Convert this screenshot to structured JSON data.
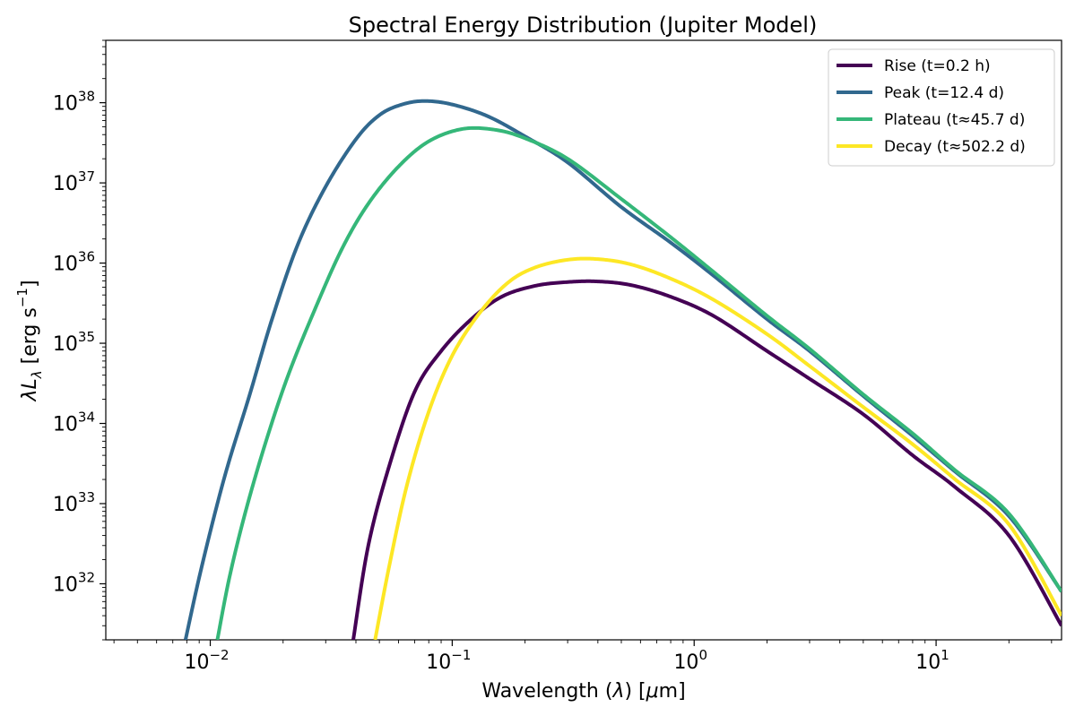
{
  "chart_data": {
    "type": "line",
    "title": "Spectral Energy Distribution (Jupiter Model)",
    "xlabel": "Wavelength (λ) [μm]",
    "ylabel": "λL_λ [erg s⁻¹]",
    "xscale": "log",
    "yscale": "log",
    "xlim": [
      0.0037,
      33
    ],
    "ylim": [
      2e+31,
      6e+38
    ],
    "grid": false,
    "legend_position": "top-right",
    "x_ticks": [
      {
        "base": "10",
        "exp": "−2",
        "value": 0.01
      },
      {
        "base": "10",
        "exp": "−1",
        "value": 0.1
      },
      {
        "base": "10",
        "exp": "0",
        "value": 1
      },
      {
        "base": "10",
        "exp": "1",
        "value": 10
      }
    ],
    "y_ticks": [
      {
        "base": "10",
        "exp": "32",
        "value": 1e+32
      },
      {
        "base": "10",
        "exp": "33",
        "value": 1e+33
      },
      {
        "base": "10",
        "exp": "34",
        "value": 1e+34
      },
      {
        "base": "10",
        "exp": "35",
        "value": 1e+35
      },
      {
        "base": "10",
        "exp": "36",
        "value": 1e+36
      },
      {
        "base": "10",
        "exp": "37",
        "value": 1e+37
      },
      {
        "base": "10",
        "exp": "38",
        "value": 1e+38
      }
    ],
    "series": [
      {
        "name": "Rise (t=0.2 h)",
        "color": "#440154",
        "x": [
          0.039,
          0.045,
          0.055,
          0.07,
          0.09,
          0.12,
          0.16,
          0.22,
          0.3,
          0.4,
          0.55,
          0.8,
          1.2,
          2,
          3,
          5,
          8,
          12,
          20,
          33
        ],
        "y": [
          2e+31,
          3e+32,
          3e+33,
          2.5e+34,
          8e+34,
          2e+35,
          3.8e+35,
          5.2e+35,
          5.8e+35,
          5.9e+35,
          5.3e+35,
          3.8e+35,
          2.2e+35,
          8e+34,
          3.6e+34,
          1.3e+34,
          4e+33,
          1.6e+33,
          4e+32,
          3e+31
        ]
      },
      {
        "name": "Peak (t=12.4 d)",
        "color": "#31688e",
        "x": [
          0.0079,
          0.009,
          0.0105,
          0.012,
          0.0145,
          0.018,
          0.023,
          0.03,
          0.04,
          0.05,
          0.062,
          0.077,
          0.1,
          0.14,
          0.2,
          0.3,
          0.5,
          0.8,
          1.2,
          2,
          3,
          5,
          8,
          12,
          20,
          33
        ],
        "y": [
          2e+31,
          1.2e+32,
          8e+32,
          3.5e+33,
          2.2e+34,
          2e+35,
          1.7e+36,
          9e+36,
          3.5e+37,
          7e+37,
          9.5e+37,
          1.05e+38,
          9.5e+37,
          6.8e+37,
          3.8e+37,
          1.8e+37,
          5e+36,
          1.8e+36,
          7e+35,
          2e+35,
          8e+34,
          2.2e+34,
          7e+33,
          2.5e+33,
          7e+32,
          8e+31
        ]
      },
      {
        "name": "Plateau (t≈45.7 d)",
        "color": "#35b779",
        "x": [
          0.0107,
          0.012,
          0.014,
          0.017,
          0.021,
          0.027,
          0.035,
          0.045,
          0.06,
          0.08,
          0.11,
          0.15,
          0.2,
          0.3,
          0.5,
          0.8,
          1.2,
          2,
          3,
          5,
          8,
          12,
          20,
          33
        ],
        "y": [
          2e+31,
          1.2e+32,
          8e+32,
          6e+33,
          4e+34,
          2.6e+35,
          1.5e+36,
          5.5e+36,
          1.6e+37,
          3.3e+37,
          4.7e+37,
          4.6e+37,
          3.6e+37,
          2e+37,
          6.3e+36,
          2.1e+36,
          7.8e+35,
          2.2e+35,
          8.5e+34,
          2.3e+34,
          7.5e+33,
          2.6e+33,
          7.5e+32,
          8e+31
        ]
      },
      {
        "name": "Decay (t≈502.2 d)",
        "color": "#fde725",
        "x": [
          0.048,
          0.055,
          0.065,
          0.08,
          0.1,
          0.13,
          0.17,
          0.22,
          0.3,
          0.4,
          0.55,
          0.8,
          1.2,
          2,
          3,
          5,
          8,
          12,
          20,
          33
        ],
        "y": [
          2e+31,
          1.7e+32,
          1.7e+33,
          1.4e+34,
          7e+34,
          2.4e+35,
          5.7e+35,
          8.8e+35,
          1.1e+36,
          1.12e+36,
          9.6e+35,
          6.4e+35,
          3.5e+35,
          1.3e+35,
          5.2e+34,
          1.6e+34,
          5.5e+33,
          2e+33,
          5.5e+32,
          4e+31
        ]
      }
    ]
  }
}
